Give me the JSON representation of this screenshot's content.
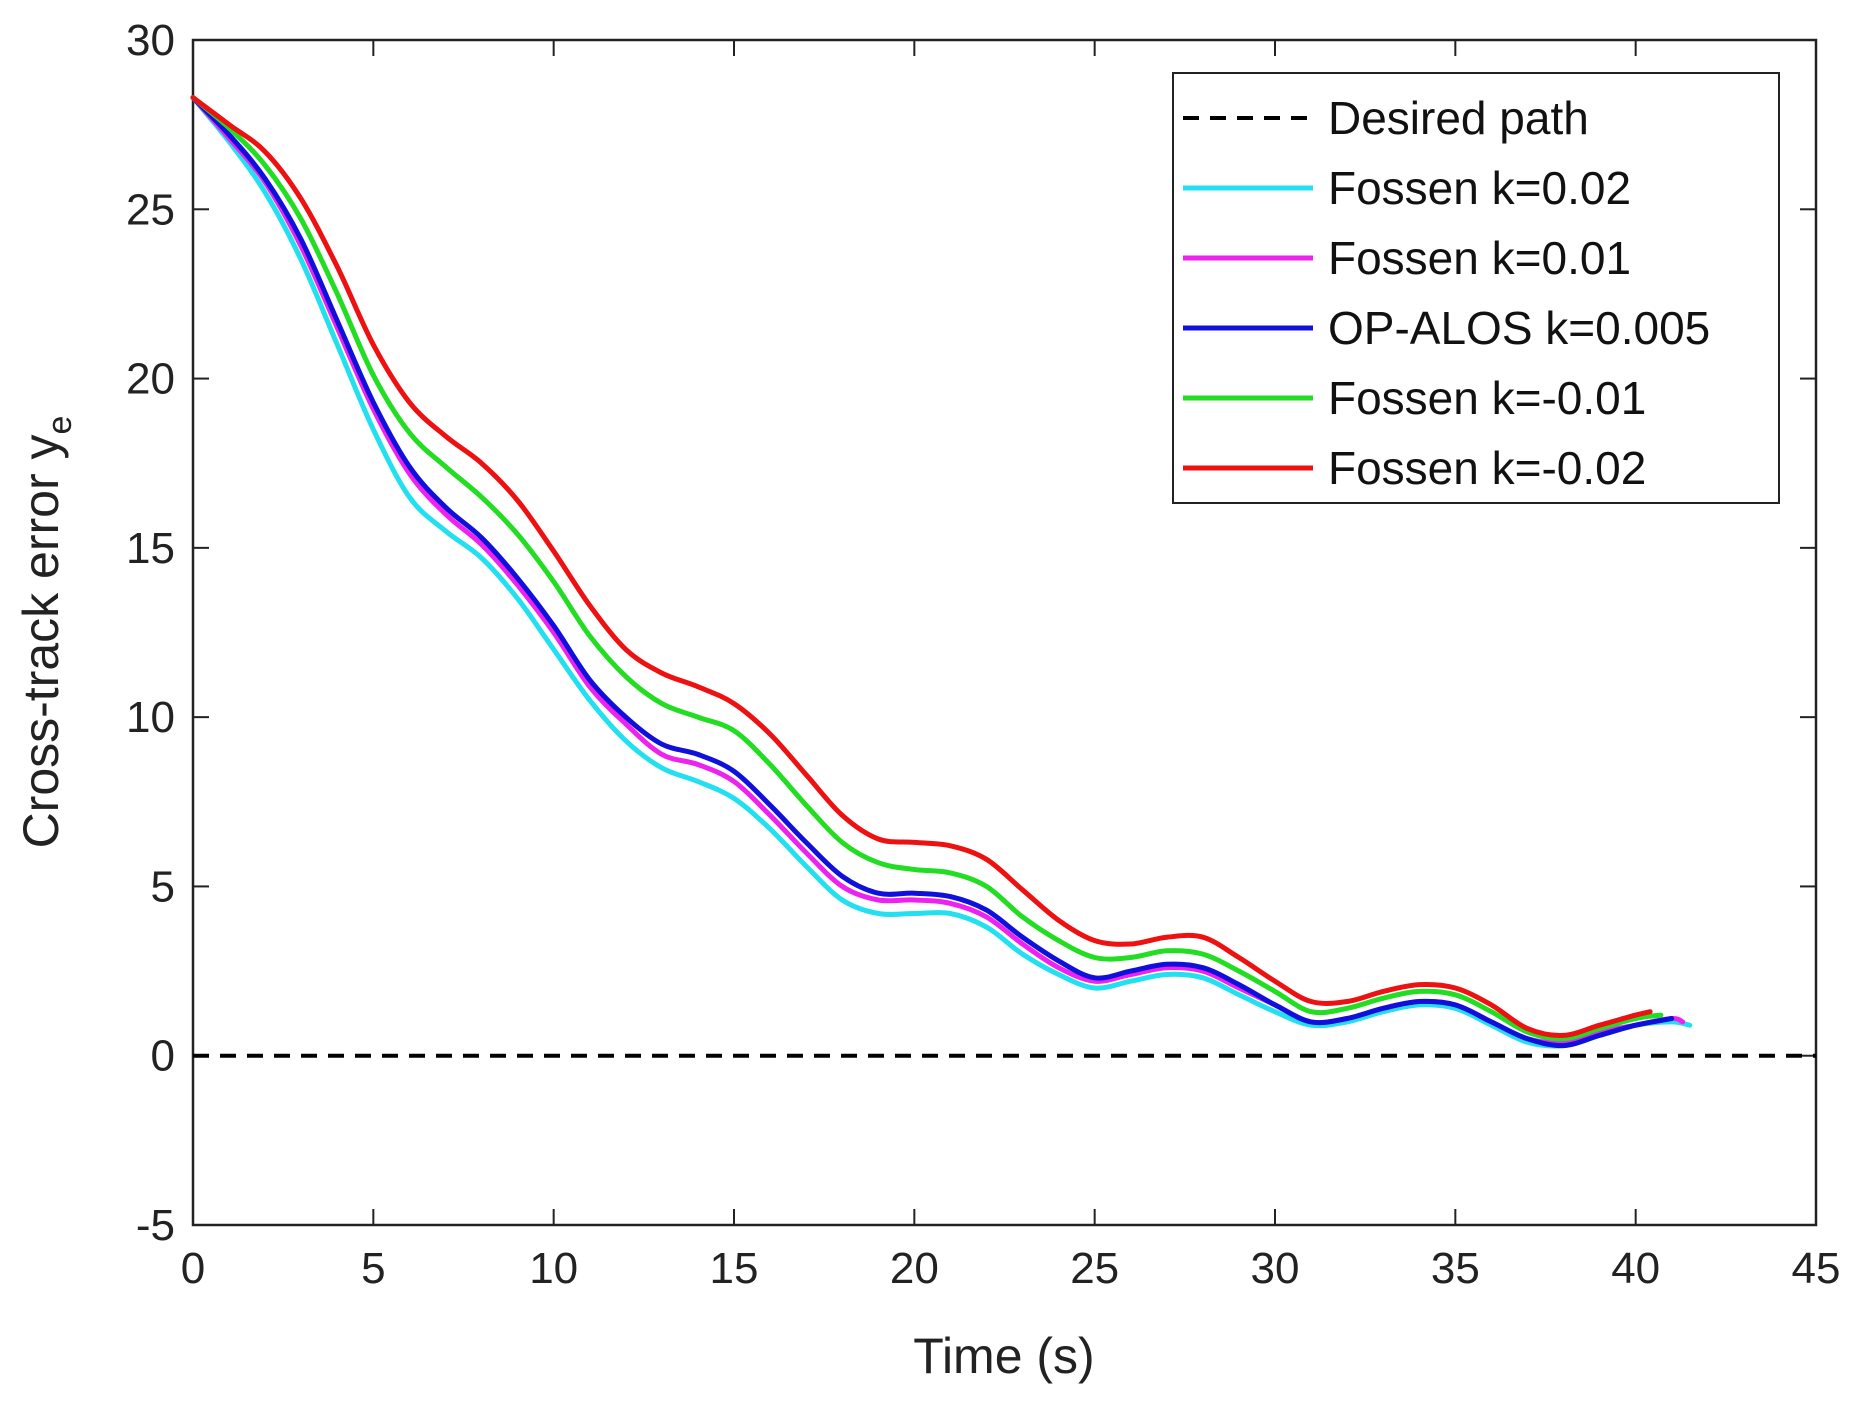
{
  "chart_data": {
    "type": "line",
    "xlabel": "Time (s)",
    "ylabel": "Cross-track error y",
    "ylabel_subscript": "e",
    "xlim": [
      0,
      45
    ],
    "ylim": [
      -5,
      30
    ],
    "xticks": [
      0,
      5,
      10,
      15,
      20,
      25,
      30,
      35,
      40,
      45
    ],
    "yticks": [
      -5,
      0,
      5,
      10,
      15,
      20,
      25,
      30
    ],
    "xtick_labels": [
      "0",
      "5",
      "10",
      "15",
      "20",
      "25",
      "30",
      "35",
      "40",
      "45"
    ],
    "ytick_labels": [
      "-5",
      "0",
      "5",
      "10",
      "15",
      "20",
      "25",
      "30"
    ],
    "grid": false,
    "legend_location": "top-right",
    "series": [
      {
        "name": "Desired path",
        "color": "#000000",
        "dashed": true,
        "x": [
          0,
          45
        ],
        "y": [
          0,
          0
        ]
      },
      {
        "name": "Fossen k=0.02",
        "color": "#22e0f0",
        "dashed": false,
        "x": [
          0,
          1,
          2,
          3,
          4,
          5,
          6,
          7,
          8,
          9,
          10,
          11,
          12,
          13,
          14,
          15,
          16,
          17,
          18,
          19,
          20,
          21,
          22,
          23,
          24,
          25,
          26,
          27,
          28,
          29,
          30,
          31,
          32,
          33,
          34,
          35,
          36,
          37,
          38,
          39,
          40,
          41,
          41.5
        ],
        "y": [
          28.3,
          27.0,
          25.5,
          23.5,
          21.0,
          18.5,
          16.5,
          15.5,
          14.7,
          13.5,
          12.0,
          10.5,
          9.3,
          8.5,
          8.1,
          7.6,
          6.7,
          5.6,
          4.6,
          4.2,
          4.2,
          4.2,
          3.8,
          3.0,
          2.4,
          2.0,
          2.2,
          2.4,
          2.3,
          1.8,
          1.3,
          0.9,
          1.0,
          1.3,
          1.5,
          1.4,
          0.9,
          0.4,
          0.3,
          0.6,
          0.9,
          1.0,
          0.9
        ]
      },
      {
        "name": "Fossen k=0.01",
        "color": "#ee22ee",
        "dashed": false,
        "x": [
          0,
          1,
          2,
          3,
          4,
          5,
          6,
          7,
          8,
          9,
          10,
          11,
          12,
          13,
          14,
          15,
          16,
          17,
          18,
          19,
          20,
          21,
          22,
          23,
          24,
          25,
          26,
          27,
          28,
          29,
          30,
          31,
          32,
          33,
          34,
          35,
          36,
          37,
          38,
          39,
          40,
          41,
          41.3
        ],
        "y": [
          28.3,
          27.1,
          25.8,
          23.9,
          21.5,
          19.1,
          17.2,
          16.0,
          15.1,
          13.9,
          12.5,
          10.9,
          9.8,
          8.9,
          8.6,
          8.1,
          7.1,
          6.0,
          5.0,
          4.6,
          4.6,
          4.5,
          4.1,
          3.3,
          2.6,
          2.2,
          2.4,
          2.6,
          2.5,
          2.0,
          1.5,
          1.0,
          1.1,
          1.4,
          1.6,
          1.5,
          1.0,
          0.5,
          0.4,
          0.7,
          0.9,
          1.1,
          1.0
        ]
      },
      {
        "name": "OP-ALOS k=0.005",
        "color": "#1010dd",
        "dashed": false,
        "x": [
          0,
          1,
          2,
          3,
          4,
          5,
          6,
          7,
          8,
          9,
          10,
          11,
          12,
          13,
          14,
          15,
          16,
          17,
          18,
          19,
          20,
          21,
          22,
          23,
          24,
          25,
          26,
          27,
          28,
          29,
          30,
          31,
          32,
          33,
          34,
          35,
          36,
          37,
          38,
          39,
          40,
          41
        ],
        "y": [
          28.3,
          27.2,
          25.9,
          24.1,
          21.7,
          19.3,
          17.4,
          16.2,
          15.3,
          14.1,
          12.7,
          11.1,
          10.0,
          9.2,
          8.9,
          8.4,
          7.4,
          6.3,
          5.3,
          4.8,
          4.8,
          4.7,
          4.3,
          3.5,
          2.8,
          2.3,
          2.5,
          2.7,
          2.6,
          2.1,
          1.5,
          1.0,
          1.1,
          1.4,
          1.6,
          1.5,
          1.0,
          0.5,
          0.3,
          0.6,
          0.9,
          1.1
        ]
      },
      {
        "name": "Fossen k=-0.01",
        "color": "#22dd22",
        "dashed": false,
        "x": [
          0,
          1,
          2,
          3,
          4,
          5,
          6,
          7,
          8,
          9,
          10,
          11,
          12,
          13,
          14,
          15,
          16,
          17,
          18,
          19,
          20,
          21,
          22,
          23,
          24,
          25,
          26,
          27,
          28,
          29,
          30,
          31,
          32,
          33,
          34,
          35,
          36,
          37,
          38,
          39,
          40,
          40.7
        ],
        "y": [
          28.3,
          27.4,
          26.3,
          24.7,
          22.5,
          20.1,
          18.4,
          17.4,
          16.5,
          15.4,
          14.0,
          12.4,
          11.2,
          10.4,
          10.0,
          9.6,
          8.6,
          7.4,
          6.3,
          5.7,
          5.5,
          5.4,
          5.0,
          4.1,
          3.4,
          2.9,
          2.9,
          3.1,
          3.0,
          2.5,
          1.9,
          1.3,
          1.4,
          1.7,
          1.9,
          1.8,
          1.3,
          0.7,
          0.5,
          0.8,
          1.1,
          1.2
        ]
      },
      {
        "name": "Fossen k=-0.02",
        "color": "#ee1111",
        "dashed": false,
        "x": [
          0,
          1,
          2,
          3,
          4,
          5,
          6,
          7,
          8,
          9,
          10,
          11,
          12,
          13,
          14,
          15,
          16,
          17,
          18,
          19,
          20,
          21,
          22,
          23,
          24,
          25,
          26,
          27,
          28,
          29,
          30,
          31,
          32,
          33,
          34,
          35,
          36,
          37,
          38,
          39,
          40,
          40.4
        ],
        "y": [
          28.3,
          27.5,
          26.7,
          25.3,
          23.3,
          21.0,
          19.3,
          18.3,
          17.5,
          16.4,
          14.9,
          13.3,
          12.0,
          11.3,
          10.9,
          10.4,
          9.5,
          8.3,
          7.1,
          6.4,
          6.3,
          6.2,
          5.8,
          4.9,
          4.0,
          3.4,
          3.3,
          3.5,
          3.5,
          2.9,
          2.2,
          1.6,
          1.6,
          1.9,
          2.1,
          2.0,
          1.5,
          0.8,
          0.6,
          0.9,
          1.2,
          1.3
        ]
      }
    ]
  }
}
